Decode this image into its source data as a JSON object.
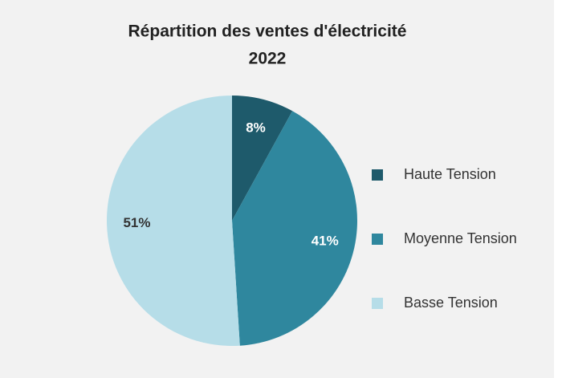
{
  "chart_data": {
    "type": "pie",
    "title": [
      "Répartition des ventes d'électricité",
      "2022"
    ],
    "categories": [
      "Haute Tension",
      "Moyenne Tension",
      "Basse Tension"
    ],
    "values": [
      8,
      41,
      51
    ],
    "value_labels": [
      "8%",
      "41%",
      "51%"
    ],
    "colors": [
      "#1e5a6b",
      "#2f879e",
      "#b6dde8"
    ],
    "label_colors": [
      "#ffffff",
      "#ffffff",
      "#333333"
    ],
    "legend": "right"
  }
}
